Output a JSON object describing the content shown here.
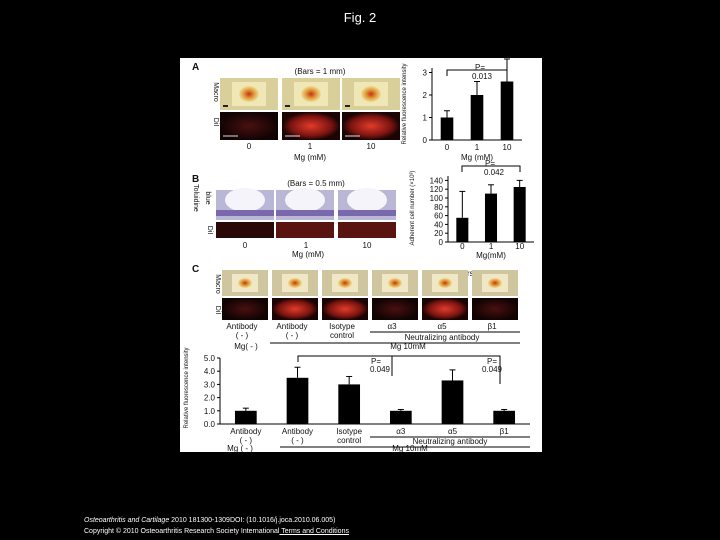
{
  "slide": {
    "title": "Fig. 2"
  },
  "figure": {
    "panel_a": {
      "letter": "A",
      "bars_note": "(Bars = 1 mm)",
      "row_labels": [
        "Macro",
        "DiI"
      ],
      "x_labels": [
        "0",
        "1",
        "10"
      ],
      "axis_title": "Mg (mM)"
    },
    "panel_b": {
      "letter": "B",
      "bars_note": "(Bars = 0.5 mm)",
      "row_labels": [
        "Toluidine",
        "blue",
        "DiI"
      ],
      "x_labels": [
        "0",
        "1",
        "10"
      ],
      "axis_title": "Mg (mM)"
    },
    "panel_c": {
      "letter": "C",
      "bars_note": "(Bars = 1 mm)",
      "row_labels": [
        "Macro",
        "DiI"
      ],
      "col_labels": [
        "Antibody",
        "( - )",
        "Antibody",
        "( - )",
        "Isotype",
        "control",
        "α3",
        "α5",
        "β1"
      ],
      "neutralizing": "Neutralizing antibody",
      "mg_none": "Mg( - )",
      "mg_10": "Mg 10mM"
    }
  },
  "chart_data": [
    {
      "type": "bar",
      "ylabel": "Relative fluorescence intensity",
      "xlabel": "Mg (mM)",
      "categories": [
        "0",
        "1",
        "10"
      ],
      "values": [
        1.0,
        2.0,
        2.6
      ],
      "errors": [
        0.3,
        0.6,
        1.0
      ],
      "yticks": [
        "0",
        "1",
        "2",
        "3"
      ],
      "ylim": [
        0,
        3.2
      ],
      "annotation": "P= 0.013"
    },
    {
      "type": "bar",
      "ylabel": "Adherent cell number (×10³)",
      "xlabel": "Mg(mM)",
      "categories": [
        "0",
        "1",
        "10"
      ],
      "values": [
        55,
        110,
        125
      ],
      "errors": [
        60,
        20,
        15
      ],
      "yticks": [
        "0",
        "20",
        "40",
        "60",
        "80",
        "100",
        "120",
        "140"
      ],
      "ylim": [
        0,
        150
      ],
      "annotation": "P= 0.042"
    },
    {
      "type": "bar",
      "ylabel": "Relative fluorescence intensity",
      "categories": [
        "Antibody ( - )",
        "Antibody ( - )",
        "Isotype control",
        "α3",
        "α5",
        "β1"
      ],
      "values": [
        1.0,
        3.5,
        3.0,
        1.0,
        3.3,
        1.0
      ],
      "errors": [
        0.2,
        0.8,
        0.6,
        0.1,
        0.8,
        0.1
      ],
      "yticks": [
        "0.0",
        "1.0",
        "2.0",
        "3.0",
        "4.0",
        "5.0"
      ],
      "ylim": [
        0,
        5.0
      ],
      "annotations": [
        "P= 0.049",
        "P= 0.049"
      ],
      "group_labels": [
        "Neutralizing antibody",
        "Mg ( - )",
        "Mg 10mM"
      ]
    }
  ],
  "footer": {
    "journal": "Osteoarthritis and Cartilage",
    "citation": " 2010 181300-1309DOI: (10.1016/j.joca.2010.06.005)",
    "copyright": "Copyright © 2010 Osteoarthritis Research Society International",
    "link": " Terms and Conditions"
  }
}
